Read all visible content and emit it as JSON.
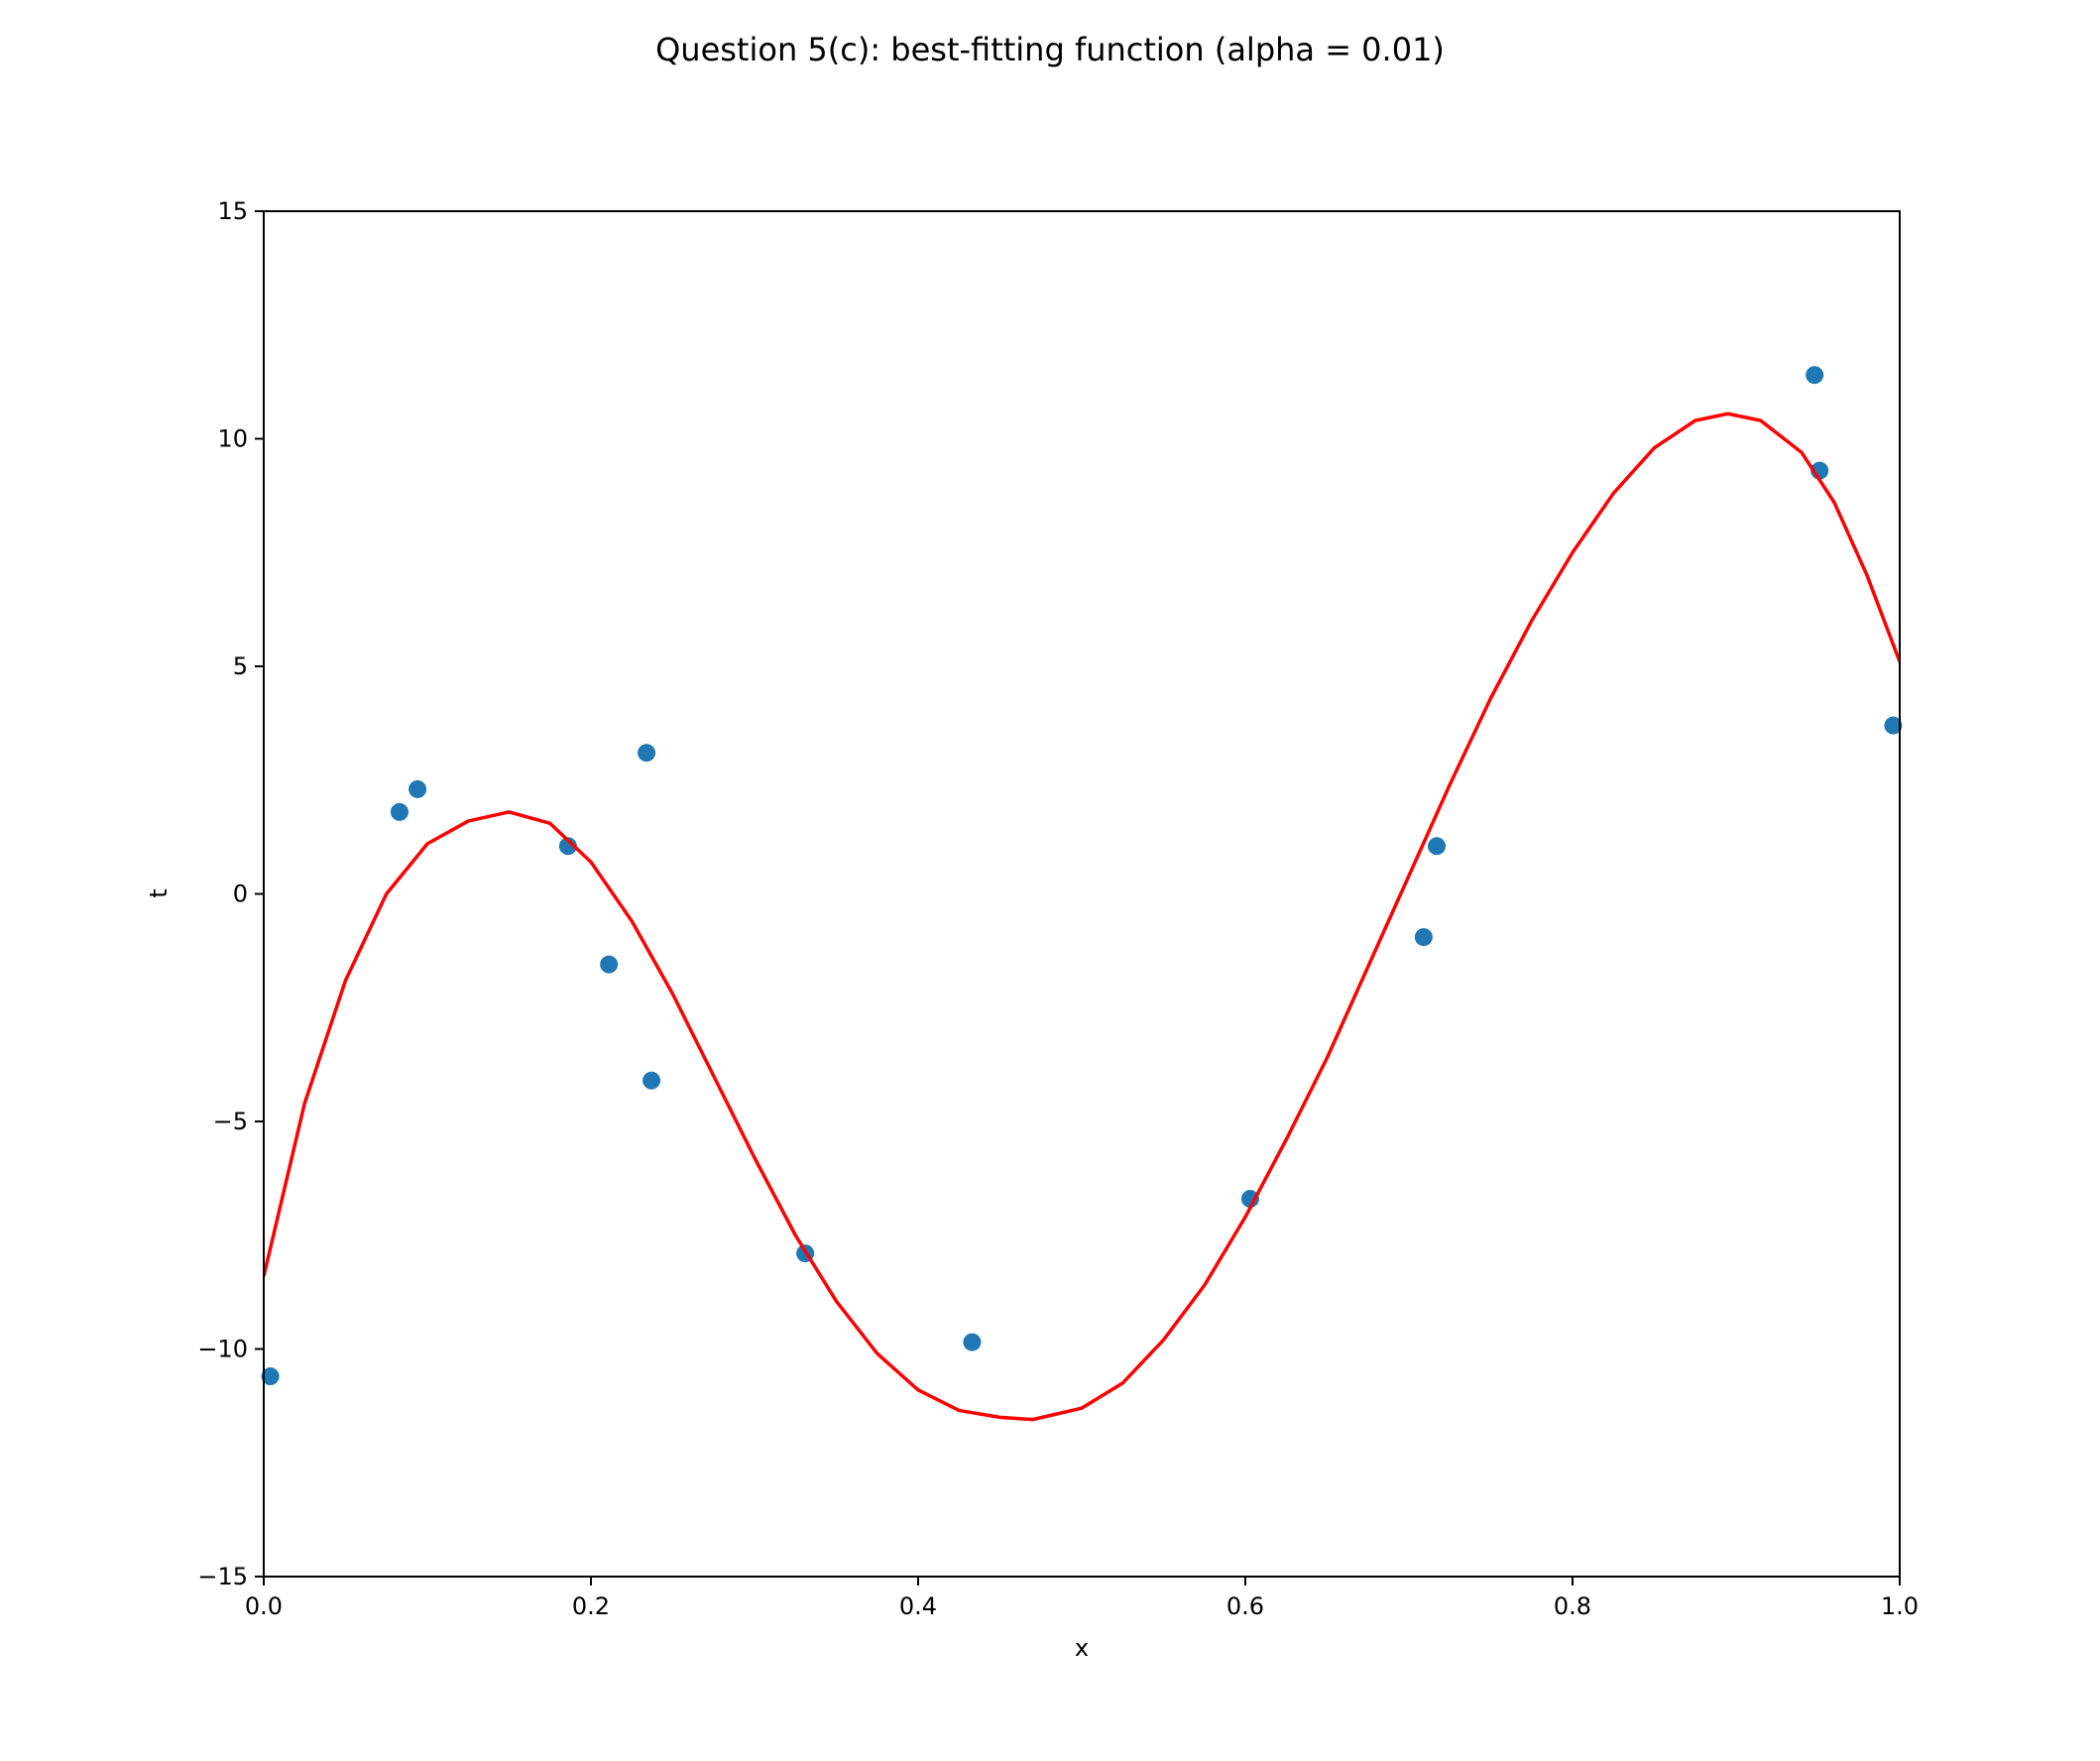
{
  "chart_data": {
    "type": "scatter",
    "title": "Question 5(c): best-fitting function (alpha = 0.01)",
    "xlabel": "x",
    "ylabel": "t",
    "xlim": [
      0.0,
      1.0
    ],
    "ylim": [
      -15,
      15
    ],
    "xticks": [
      0.0,
      0.2,
      0.4,
      0.6,
      0.8,
      1.0
    ],
    "xtick_labels": [
      "0.0",
      "0.2",
      "0.4",
      "0.6",
      "0.8",
      "1.0"
    ],
    "yticks": [
      -15,
      -10,
      -5,
      0,
      5,
      10,
      15
    ],
    "ytick_labels": [
      "−15",
      "−10",
      "−5",
      "0",
      "5",
      "10",
      "15"
    ],
    "grid": false,
    "series": [
      {
        "type": "scatter",
        "color": "#1f77b4",
        "points": [
          {
            "x": 0.004,
            "y": -10.6
          },
          {
            "x": 0.083,
            "y": 1.8
          },
          {
            "x": 0.094,
            "y": 2.3
          },
          {
            "x": 0.186,
            "y": 1.05
          },
          {
            "x": 0.211,
            "y": -1.55
          },
          {
            "x": 0.234,
            "y": 3.1
          },
          {
            "x": 0.237,
            "y": -4.1
          },
          {
            "x": 0.331,
            "y": -7.9
          },
          {
            "x": 0.433,
            "y": -9.85
          },
          {
            "x": 0.603,
            "y": -6.7
          },
          {
            "x": 0.709,
            "y": -0.95
          },
          {
            "x": 0.717,
            "y": 1.05
          },
          {
            "x": 0.948,
            "y": 11.4
          },
          {
            "x": 0.951,
            "y": 9.3
          },
          {
            "x": 0.996,
            "y": 3.7
          }
        ]
      },
      {
        "type": "line",
        "color": "#ff0000",
        "points": [
          {
            "x": 0.0,
            "y": -8.4
          },
          {
            "x": 0.025,
            "y": -4.6
          },
          {
            "x": 0.05,
            "y": -1.9
          },
          {
            "x": 0.075,
            "y": 0.0
          },
          {
            "x": 0.1,
            "y": 1.1
          },
          {
            "x": 0.125,
            "y": 1.6
          },
          {
            "x": 0.15,
            "y": 1.8
          },
          {
            "x": 0.175,
            "y": 1.55
          },
          {
            "x": 0.2,
            "y": 0.7
          },
          {
            "x": 0.225,
            "y": -0.6
          },
          {
            "x": 0.25,
            "y": -2.2
          },
          {
            "x": 0.275,
            "y": -4.0
          },
          {
            "x": 0.3,
            "y": -5.8
          },
          {
            "x": 0.325,
            "y": -7.5
          },
          {
            "x": 0.35,
            "y": -8.95
          },
          {
            "x": 0.375,
            "y": -10.1
          },
          {
            "x": 0.4,
            "y": -10.9
          },
          {
            "x": 0.425,
            "y": -11.35
          },
          {
            "x": 0.45,
            "y": -11.5
          },
          {
            "x": 0.47,
            "y": -11.55
          },
          {
            "x": 0.5,
            "y": -11.3
          },
          {
            "x": 0.525,
            "y": -10.75
          },
          {
            "x": 0.55,
            "y": -9.8
          },
          {
            "x": 0.575,
            "y": -8.6
          },
          {
            "x": 0.6,
            "y": -7.1
          },
          {
            "x": 0.625,
            "y": -5.4
          },
          {
            "x": 0.65,
            "y": -3.6
          },
          {
            "x": 0.675,
            "y": -1.6
          },
          {
            "x": 0.7,
            "y": 0.4
          },
          {
            "x": 0.725,
            "y": 2.4
          },
          {
            "x": 0.75,
            "y": 4.3
          },
          {
            "x": 0.775,
            "y": 6.0
          },
          {
            "x": 0.8,
            "y": 7.5
          },
          {
            "x": 0.825,
            "y": 8.8
          },
          {
            "x": 0.85,
            "y": 9.8
          },
          {
            "x": 0.875,
            "y": 10.4
          },
          {
            "x": 0.895,
            "y": 10.55
          },
          {
            "x": 0.915,
            "y": 10.4
          },
          {
            "x": 0.94,
            "y": 9.7
          },
          {
            "x": 0.96,
            "y": 8.6
          },
          {
            "x": 0.98,
            "y": 7.0
          },
          {
            "x": 1.0,
            "y": 5.1
          }
        ]
      }
    ]
  }
}
